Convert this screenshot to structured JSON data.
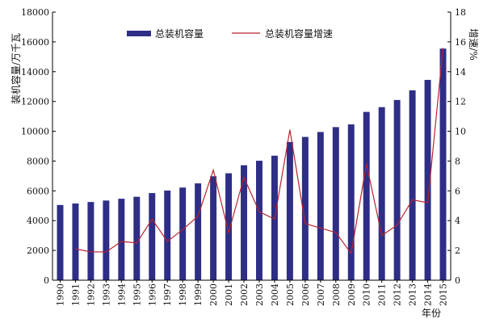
{
  "chart_data": {
    "type": "bar",
    "categories": [
      "1990",
      "1991",
      "1992",
      "1993",
      "1994",
      "1995",
      "1996",
      "1997",
      "1998",
      "1999",
      "2000",
      "2001",
      "2002",
      "2003",
      "2004",
      "2005",
      "2006",
      "2007",
      "2008",
      "2009",
      "2010",
      "2011",
      "2012",
      "2013",
      "2014",
      "2015"
    ],
    "series": [
      {
        "name": "总装机容量",
        "type": "bar",
        "axis": "left",
        "color": "#2E2E86",
        "values": [
          5050,
          5150,
          5250,
          5350,
          5470,
          5600,
          5850,
          6020,
          6220,
          6500,
          6980,
          7180,
          7720,
          8020,
          8360,
          9280,
          9620,
          9950,
          10280,
          10460,
          11300,
          11620,
          12100,
          12750,
          13450,
          15550
        ]
      },
      {
        "name": "总装机容量增速",
        "type": "line",
        "axis": "right",
        "color": "#B8232F",
        "values": [
          null,
          2.1,
          1.9,
          1.9,
          2.6,
          2.5,
          4.1,
          2.6,
          3.4,
          4.3,
          7.4,
          3.2,
          6.9,
          4.6,
          4.1,
          10.1,
          3.8,
          3.5,
          3.2,
          1.8,
          7.8,
          3.0,
          3.7,
          5.4,
          5.2,
          15.6
        ]
      }
    ],
    "ylabel": "装机容量/万千瓦",
    "y2label": "增速/%",
    "xlabel": "年份",
    "ylim": [
      0,
      18000
    ],
    "y2lim": [
      0,
      18
    ],
    "yticks": [
      "0",
      "2000",
      "4000",
      "6000",
      "8000",
      "10000",
      "12000",
      "14000",
      "16000",
      "18000"
    ],
    "y2ticks": [
      "0",
      "2",
      "4",
      "6",
      "8",
      "10",
      "12",
      "14",
      "16",
      "18"
    ],
    "legend_position": "top",
    "grid": false
  }
}
